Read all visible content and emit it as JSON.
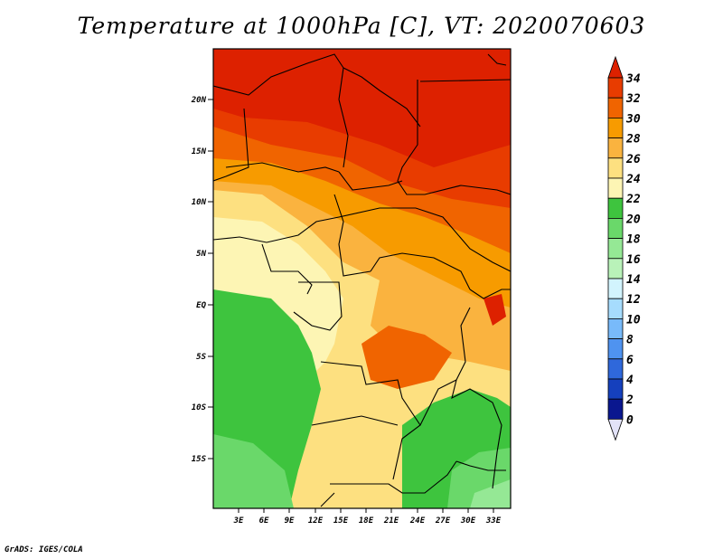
{
  "title": "Temperature at 1000hPa [C], VT: 2020070603",
  "credit": "GrADS: IGES/COLA",
  "map": {
    "lat_labels": [
      "20N",
      "15N",
      "10N",
      "5N",
      "EQ",
      "5S",
      "10S",
      "15S"
    ],
    "lon_labels": [
      "3E",
      "6E",
      "9E",
      "12E",
      "15E",
      "18E",
      "21E",
      "24E",
      "27E",
      "30E",
      "33E"
    ]
  },
  "colorbar": {
    "labels": [
      "34",
      "32",
      "30",
      "28",
      "26",
      "24",
      "22",
      "20",
      "18",
      "16",
      "14",
      "12",
      "10",
      "8",
      "6",
      "4",
      "2",
      "0"
    ],
    "colors": [
      "#dd2100",
      "#e83c00",
      "#f06400",
      "#f79b00",
      "#fab33f",
      "#fde080",
      "#fdf5b4",
      "#3ec43e",
      "#6ad86a",
      "#95e895",
      "#b9f2b9",
      "#d2f4fd",
      "#a6dcfd",
      "#78bafa",
      "#4f93f0",
      "#2f68db",
      "#1540bd",
      "#0a178f",
      "#e2e2f8"
    ]
  }
}
